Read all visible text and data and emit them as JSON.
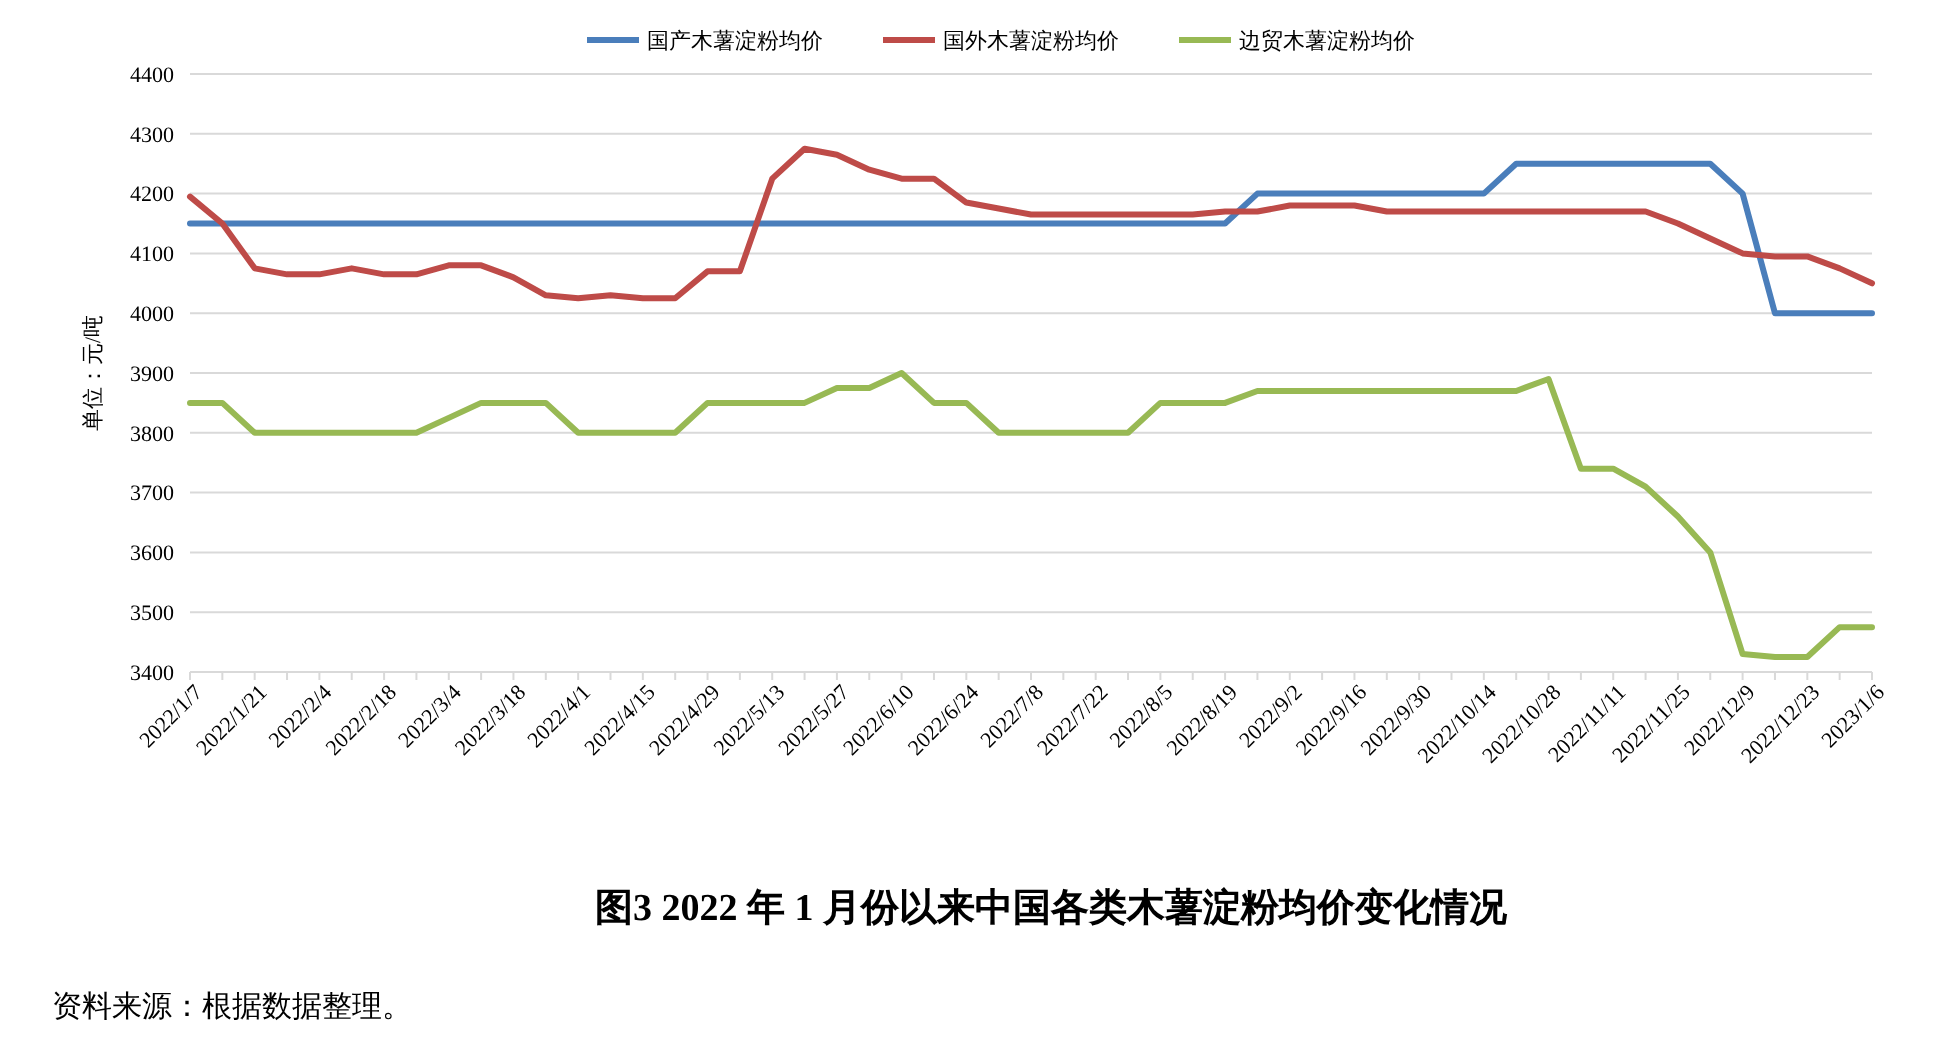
{
  "chart_data": {
    "type": "line",
    "title": "图3   2022 年 1 月份以来中国各类木薯淀粉均价变化情况",
    "ylabel": "单位：元/吨",
    "annotations": [
      "资料来源：根据数据整理。"
    ],
    "categories": [
      "2022/1/7",
      null,
      "2022/1/21",
      null,
      "2022/2/4",
      null,
      "2022/2/18",
      null,
      "2022/3/4",
      null,
      "2022/3/18",
      null,
      "2022/4/1",
      null,
      "2022/4/15",
      null,
      "2022/4/29",
      null,
      "2022/5/13",
      null,
      "2022/5/27",
      null,
      "2022/6/10",
      null,
      "2022/6/24",
      null,
      "2022/7/8",
      null,
      "2022/7/22",
      null,
      "2022/8/5",
      null,
      "2022/8/19",
      null,
      "2022/9/2",
      null,
      "2022/9/16",
      null,
      "2022/9/30",
      null,
      "2022/10/14",
      null,
      "2022/10/28",
      null,
      "2022/11/11",
      null,
      "2022/11/25",
      null,
      "2022/12/9",
      null,
      "2022/12/23",
      null,
      "2023/1/6"
    ],
    "series": [
      {
        "name": "国产木薯淀粉均价",
        "color": "#4a7ebb",
        "values": [
          4150,
          4150,
          4150,
          4150,
          4150,
          4150,
          4150,
          4150,
          4150,
          4150,
          4150,
          4150,
          4150,
          4150,
          4150,
          4150,
          4150,
          4150,
          4150,
          4150,
          4150,
          4150,
          4150,
          4150,
          4150,
          4150,
          4150,
          4150,
          4150,
          4150,
          4150,
          4150,
          4150,
          4200,
          4200,
          4200,
          4200,
          4200,
          4200,
          4200,
          4200,
          4250,
          4250,
          4250,
          4250,
          4250,
          4250,
          4250,
          4200,
          4000,
          4000,
          4000,
          4000
        ]
      },
      {
        "name": "国外木薯淀粉均价",
        "color": "#be4b48",
        "values": [
          4195,
          4150,
          4075,
          4065,
          4065,
          4075,
          4065,
          4065,
          4080,
          4080,
          4060,
          4030,
          4025,
          4030,
          4025,
          4025,
          4070,
          4070,
          4225,
          4275,
          4265,
          4240,
          4225,
          4225,
          4185,
          4175,
          4165,
          4165,
          4165,
          4165,
          4165,
          4165,
          4170,
          4170,
          4180,
          4180,
          4180,
          4170,
          4170,
          4170,
          4170,
          4170,
          4170,
          4170,
          4170,
          4170,
          4150,
          4125,
          4100,
          4095,
          4095,
          4075,
          4050
        ]
      },
      {
        "name": "边贸木薯淀粉均价",
        "color": "#98b954",
        "values": [
          3850,
          3850,
          3800,
          3800,
          3800,
          3800,
          3800,
          3800,
          3825,
          3850,
          3850,
          3850,
          3800,
          3800,
          3800,
          3800,
          3850,
          3850,
          3850,
          3850,
          3875,
          3875,
          3900,
          3850,
          3850,
          3800,
          3800,
          3800,
          3800,
          3800,
          3850,
          3850,
          3850,
          3870,
          3870,
          3870,
          3870,
          3870,
          3870,
          3870,
          3870,
          3870,
          3890,
          3740,
          3740,
          3710,
          3660,
          3600,
          3430,
          3425,
          3425,
          3475,
          3475
        ]
      }
    ],
    "ylim": [
      3400,
      4400
    ],
    "yticks": [
      3400,
      3500,
      3600,
      3700,
      3800,
      3900,
      4000,
      4100,
      4200,
      4300,
      4400
    ],
    "grid": "y",
    "legend": "top",
    "marker": "none",
    "line_style": "solid"
  }
}
